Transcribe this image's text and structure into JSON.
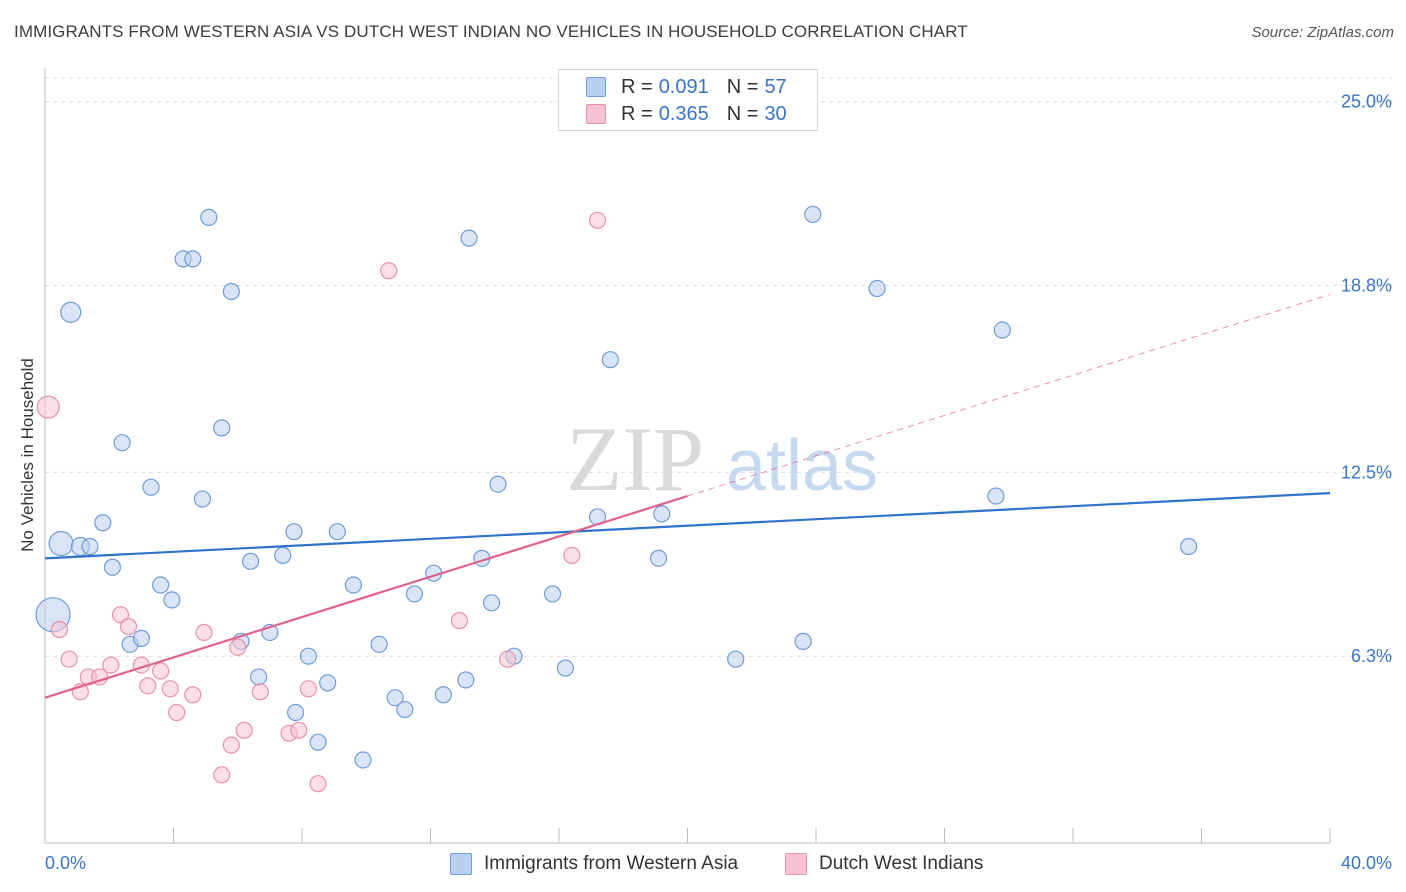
{
  "title": "IMMIGRANTS FROM WESTERN ASIA VS DUTCH WEST INDIAN NO VEHICLES IN HOUSEHOLD CORRELATION CHART",
  "source": "Source: ZipAtlas.com",
  "watermark": {
    "zip": "ZIP",
    "atlas": "atlas"
  },
  "legend": {
    "rows": [
      {
        "r_label": "R =",
        "r_value": "0.091",
        "n_label": "N =",
        "n_value": "57"
      },
      {
        "r_label": "R =",
        "r_value": "0.365",
        "n_label": "N =",
        "n_value": "30"
      }
    ]
  },
  "bottom_legend": [
    {
      "label": "Immigrants from Western Asia"
    },
    {
      "label": "Dutch West Indians"
    }
  ],
  "colors": {
    "blue_fill": "#b9d0f0",
    "blue_stroke": "#6f9bd8",
    "blue_line": "#2f72cc",
    "pink_fill": "#f7c3d3",
    "pink_stroke": "#e891ad",
    "pink_line": "#e0618c",
    "axis_text": "#3b74c6",
    "grid": "#dcdcdc"
  },
  "chart_data": {
    "type": "scatter",
    "title": "IMMIGRANTS FROM WESTERN ASIA VS DUTCH WEST INDIAN NO VEHICLES IN HOUSEHOLD CORRELATION CHART",
    "xlabel": "",
    "ylabel": "No Vehicles in Household",
    "xlim": [
      0,
      40
    ],
    "ylim": [
      0,
      25.8
    ],
    "x_tick_labels": [
      "0.0%",
      "40.0%"
    ],
    "y_ticks": [
      {
        "value": 6.3,
        "label": "6.3%"
      },
      {
        "value": 12.5,
        "label": "12.5%"
      },
      {
        "value": 18.8,
        "label": "18.8%"
      },
      {
        "value": 25.0,
        "label": "25.0%"
      }
    ],
    "series": [
      {
        "name": "Immigrants from Western Asia",
        "color": "blue",
        "points": [
          {
            "x": 0.25,
            "y": 7.7,
            "r": 17
          },
          {
            "x": 0.5,
            "y": 10.1,
            "r": 12
          },
          {
            "x": 0.8,
            "y": 17.9,
            "r": 10
          },
          {
            "x": 1.1,
            "y": 10.0,
            "r": 9
          },
          {
            "x": 1.4,
            "y": 10.0,
            "r": 8
          },
          {
            "x": 1.8,
            "y": 10.8,
            "r": 8
          },
          {
            "x": 2.1,
            "y": 9.3,
            "r": 8
          },
          {
            "x": 2.4,
            "y": 13.5,
            "r": 8
          },
          {
            "x": 2.65,
            "y": 6.7,
            "r": 8
          },
          {
            "x": 3.0,
            "y": 6.9,
            "r": 8
          },
          {
            "x": 3.3,
            "y": 12.0,
            "r": 8
          },
          {
            "x": 3.6,
            "y": 8.7,
            "r": 8
          },
          {
            "x": 3.95,
            "y": 8.2,
            "r": 8
          },
          {
            "x": 4.3,
            "y": 19.7,
            "r": 8
          },
          {
            "x": 4.6,
            "y": 19.7,
            "r": 8
          },
          {
            "x": 4.9,
            "y": 11.6,
            "r": 8
          },
          {
            "x": 5.1,
            "y": 21.1,
            "r": 8
          },
          {
            "x": 5.5,
            "y": 14.0,
            "r": 8
          },
          {
            "x": 5.8,
            "y": 18.6,
            "r": 8
          },
          {
            "x": 6.1,
            "y": 6.8,
            "r": 8
          },
          {
            "x": 6.4,
            "y": 9.5,
            "r": 8
          },
          {
            "x": 6.65,
            "y": 5.6,
            "r": 8
          },
          {
            "x": 7.0,
            "y": 7.1,
            "r": 8
          },
          {
            "x": 7.4,
            "y": 9.7,
            "r": 8
          },
          {
            "x": 7.75,
            "y": 10.5,
            "r": 8
          },
          {
            "x": 7.8,
            "y": 4.4,
            "r": 8
          },
          {
            "x": 8.2,
            "y": 6.3,
            "r": 8
          },
          {
            "x": 8.5,
            "y": 3.4,
            "r": 8
          },
          {
            "x": 8.8,
            "y": 5.4,
            "r": 8
          },
          {
            "x": 9.1,
            "y": 10.5,
            "r": 8
          },
          {
            "x": 9.6,
            "y": 8.7,
            "r": 8
          },
          {
            "x": 9.9,
            "y": 2.8,
            "r": 8
          },
          {
            "x": 10.4,
            "y": 6.7,
            "r": 8
          },
          {
            "x": 10.9,
            "y": 4.9,
            "r": 8
          },
          {
            "x": 11.2,
            "y": 4.5,
            "r": 8
          },
          {
            "x": 11.5,
            "y": 8.4,
            "r": 8
          },
          {
            "x": 12.1,
            "y": 9.1,
            "r": 8
          },
          {
            "x": 12.4,
            "y": 5.0,
            "r": 8
          },
          {
            "x": 13.1,
            "y": 5.5,
            "r": 8
          },
          {
            "x": 13.2,
            "y": 20.4,
            "r": 8
          },
          {
            "x": 13.6,
            "y": 9.6,
            "r": 8
          },
          {
            "x": 13.9,
            "y": 8.1,
            "r": 8
          },
          {
            "x": 14.1,
            "y": 12.1,
            "r": 8
          },
          {
            "x": 14.6,
            "y": 6.3,
            "r": 8
          },
          {
            "x": 15.8,
            "y": 8.4,
            "r": 8
          },
          {
            "x": 16.2,
            "y": 5.9,
            "r": 8
          },
          {
            "x": 17.2,
            "y": 11.0,
            "r": 8
          },
          {
            "x": 17.6,
            "y": 16.3,
            "r": 8
          },
          {
            "x": 19.1,
            "y": 9.6,
            "r": 8
          },
          {
            "x": 19.2,
            "y": 11.1,
            "r": 8
          },
          {
            "x": 21.5,
            "y": 6.2,
            "r": 8
          },
          {
            "x": 23.6,
            "y": 6.8,
            "r": 8
          },
          {
            "x": 23.9,
            "y": 21.2,
            "r": 8
          },
          {
            "x": 25.9,
            "y": 18.7,
            "r": 8
          },
          {
            "x": 29.8,
            "y": 17.3,
            "r": 8
          },
          {
            "x": 29.6,
            "y": 11.7,
            "r": 8
          },
          {
            "x": 35.6,
            "y": 10.0,
            "r": 8
          }
        ],
        "trend": {
          "x": [
            0,
            40
          ],
          "y": [
            9.6,
            11.8
          ]
        }
      },
      {
        "name": "Dutch West Indians",
        "color": "pink",
        "points": [
          {
            "x": 0.1,
            "y": 14.7,
            "r": 11
          },
          {
            "x": 0.45,
            "y": 7.2,
            "r": 8
          },
          {
            "x": 0.75,
            "y": 6.2,
            "r": 8
          },
          {
            "x": 1.1,
            "y": 5.1,
            "r": 8
          },
          {
            "x": 1.35,
            "y": 5.6,
            "r": 8
          },
          {
            "x": 1.7,
            "y": 5.6,
            "r": 8
          },
          {
            "x": 2.05,
            "y": 6.0,
            "r": 8
          },
          {
            "x": 2.35,
            "y": 7.7,
            "r": 8
          },
          {
            "x": 2.6,
            "y": 7.3,
            "r": 8
          },
          {
            "x": 3.0,
            "y": 6.0,
            "r": 8
          },
          {
            "x": 3.2,
            "y": 5.3,
            "r": 8
          },
          {
            "x": 3.6,
            "y": 5.8,
            "r": 8
          },
          {
            "x": 3.9,
            "y": 5.2,
            "r": 8
          },
          {
            "x": 4.1,
            "y": 4.4,
            "r": 8
          },
          {
            "x": 4.6,
            "y": 5.0,
            "r": 8
          },
          {
            "x": 4.95,
            "y": 7.1,
            "r": 8
          },
          {
            "x": 5.5,
            "y": 2.3,
            "r": 8
          },
          {
            "x": 5.8,
            "y": 3.3,
            "r": 8
          },
          {
            "x": 6.0,
            "y": 6.6,
            "r": 8
          },
          {
            "x": 6.2,
            "y": 3.8,
            "r": 8
          },
          {
            "x": 6.7,
            "y": 5.1,
            "r": 8
          },
          {
            "x": 7.6,
            "y": 3.7,
            "r": 8
          },
          {
            "x": 7.9,
            "y": 3.8,
            "r": 8
          },
          {
            "x": 8.2,
            "y": 5.2,
            "r": 8
          },
          {
            "x": 8.5,
            "y": 2.0,
            "r": 8
          },
          {
            "x": 10.7,
            "y": 19.3,
            "r": 8
          },
          {
            "x": 12.9,
            "y": 7.5,
            "r": 8
          },
          {
            "x": 14.4,
            "y": 6.2,
            "r": 8
          },
          {
            "x": 16.4,
            "y": 9.7,
            "r": 8
          },
          {
            "x": 17.2,
            "y": 21.0,
            "r": 8
          }
        ],
        "trend": {
          "x": [
            0,
            20
          ],
          "y": [
            4.9,
            11.7
          ]
        },
        "trend_extension": {
          "x": [
            20,
            40
          ],
          "y": [
            11.7,
            18.5
          ]
        }
      }
    ]
  }
}
